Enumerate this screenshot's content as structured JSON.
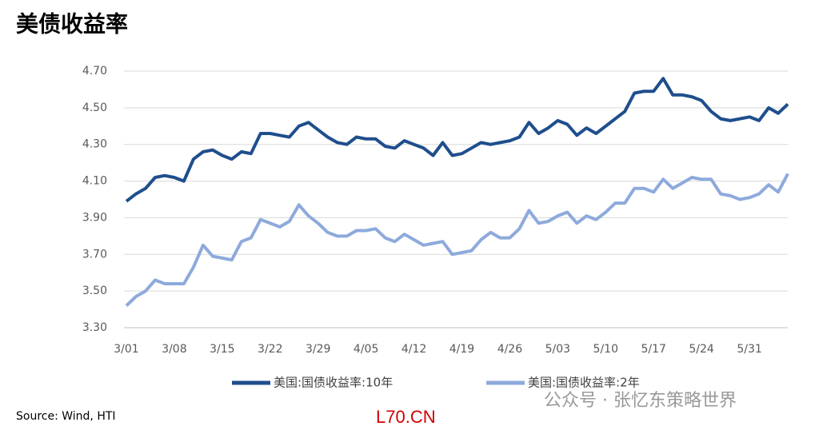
{
  "chart_data": {
    "type": "line",
    "title": "美债收益率",
    "categories": [
      "3/01",
      null,
      null,
      null,
      null,
      "3/08",
      null,
      null,
      null,
      null,
      "3/15",
      null,
      null,
      null,
      null,
      "3/22",
      null,
      null,
      null,
      null,
      "3/29",
      null,
      null,
      null,
      null,
      "4/05",
      null,
      null,
      null,
      null,
      "4/12",
      null,
      null,
      null,
      null,
      "4/19",
      null,
      null,
      null,
      null,
      "4/26",
      null,
      null,
      null,
      null,
      "5/03",
      null,
      null,
      null,
      null,
      "5/10",
      null,
      null,
      null,
      null,
      "5/17",
      null,
      null,
      null,
      null,
      "5/24",
      null,
      null,
      null,
      null,
      "5/31",
      null,
      null,
      null,
      null
    ],
    "series": [
      {
        "name": "美国:国债收益率:10年",
        "color": "#1f4e8c",
        "values": [
          3.99,
          4.03,
          4.06,
          4.12,
          4.13,
          4.12,
          4.1,
          4.22,
          4.26,
          4.27,
          4.24,
          4.22,
          4.26,
          4.25,
          4.36,
          4.36,
          4.35,
          4.34,
          4.4,
          4.42,
          4.38,
          4.34,
          4.31,
          4.3,
          4.34,
          4.33,
          4.33,
          4.29,
          4.28,
          4.32,
          4.3,
          4.28,
          4.24,
          4.31,
          4.24,
          4.25,
          4.28,
          4.31,
          4.3,
          4.31,
          4.32,
          4.34,
          4.42,
          4.36,
          4.39,
          4.43,
          4.41,
          4.35,
          4.39,
          4.36,
          4.4,
          4.44,
          4.48,
          4.58,
          4.59,
          4.59,
          4.66,
          4.57,
          4.57,
          4.56,
          4.54,
          4.48,
          4.44,
          4.43,
          4.44,
          4.45,
          4.43,
          4.5,
          4.47,
          4.52
        ]
      },
      {
        "name": "美国:国债收益率:2年",
        "color": "#8eaadc",
        "values": [
          3.42,
          3.47,
          3.5,
          3.56,
          3.54,
          3.54,
          3.54,
          3.63,
          3.75,
          3.69,
          3.68,
          3.67,
          3.77,
          3.79,
          3.89,
          3.87,
          3.85,
          3.88,
          3.97,
          3.91,
          3.87,
          3.82,
          3.8,
          3.8,
          3.83,
          3.83,
          3.84,
          3.79,
          3.77,
          3.81,
          3.78,
          3.75,
          3.76,
          3.77,
          3.7,
          3.71,
          3.72,
          3.78,
          3.82,
          3.79,
          3.79,
          3.84,
          3.94,
          3.87,
          3.88,
          3.91,
          3.93,
          3.87,
          3.91,
          3.89,
          3.93,
          3.98,
          3.98,
          4.06,
          4.06,
          4.04,
          4.11,
          4.06,
          4.09,
          4.12,
          4.11,
          4.11,
          4.03,
          4.02,
          4.0,
          4.01,
          4.03,
          4.08,
          4.04,
          4.14
        ]
      }
    ],
    "ylim": [
      3.3,
      4.7
    ],
    "yticks": [
      {
        "value": 3.3,
        "label": "3.30"
      },
      {
        "value": 3.5,
        "label": "3.50"
      },
      {
        "value": 3.7,
        "label": "3.70"
      },
      {
        "value": 3.9,
        "label": "3.90"
      },
      {
        "value": 4.1,
        "label": "4.10"
      },
      {
        "value": 4.3,
        "label": "4.30"
      },
      {
        "value": 4.5,
        "label": "4.50"
      },
      {
        "value": 4.7,
        "label": "4.70"
      }
    ],
    "grid": true,
    "source": "Source: Wind, HTI",
    "watermark": "公众号 · 张忆东策略世界",
    "site_mark": "L70.CN"
  }
}
